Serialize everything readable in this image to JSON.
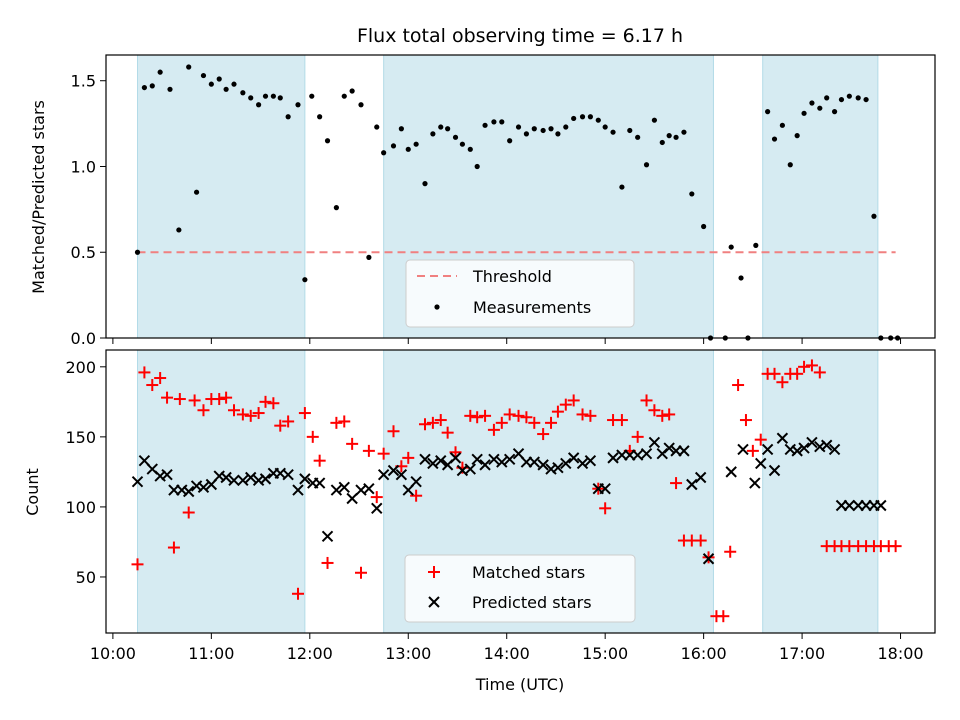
{
  "chart_data": [
    {
      "type": "scatter",
      "title": "Flux total observing time = 6.17 h",
      "xlabel": "",
      "ylabel": "Matched/Predicted stars",
      "xlim": [
        9.93,
        18.35
      ],
      "ylim": [
        0,
        1.65
      ],
      "yticks": [
        0.0,
        0.5,
        1.0,
        1.5
      ],
      "ytick_labels": [
        "0.0",
        "0.5",
        "1.0",
        "1.5"
      ],
      "xticks": [
        10,
        11,
        12,
        13,
        14,
        15,
        16,
        17,
        18
      ],
      "shaded_intervals": [
        [
          10.25,
          11.95
        ],
        [
          12.75,
          16.1
        ],
        [
          16.6,
          17.77
        ]
      ],
      "threshold": {
        "label": "Threshold",
        "value": 0.5,
        "x_range": [
          10.25,
          17.95
        ],
        "color": "#f08080"
      },
      "legend": {
        "position": "lower-center",
        "entries": [
          "Threshold",
          "Measurements"
        ]
      },
      "series": [
        {
          "name": "Measurements",
          "color": "#000000",
          "x": [
            10.25,
            10.32,
            10.4,
            10.48,
            10.58,
            10.67,
            10.77,
            10.85,
            10.92,
            11.0,
            11.08,
            11.15,
            11.23,
            11.32,
            11.4,
            11.48,
            11.55,
            11.63,
            11.7,
            11.78,
            11.88,
            11.95,
            12.02,
            12.1,
            12.18,
            12.27,
            12.35,
            12.43,
            12.52,
            12.6,
            12.68,
            12.75,
            12.85,
            12.93,
            13.0,
            13.08,
            13.17,
            13.25,
            13.33,
            13.4,
            13.48,
            13.55,
            13.63,
            13.7,
            13.78,
            13.87,
            13.95,
            14.03,
            14.12,
            14.2,
            14.28,
            14.37,
            14.45,
            14.52,
            14.6,
            14.68,
            14.77,
            14.85,
            14.93,
            15.0,
            15.08,
            15.17,
            15.25,
            15.33,
            15.42,
            15.5,
            15.58,
            15.65,
            15.72,
            15.8,
            15.88,
            16.0,
            16.07,
            16.22,
            16.28,
            16.38,
            16.45,
            16.53,
            16.65,
            16.72,
            16.8,
            16.88,
            16.95,
            17.02,
            17.1,
            17.18,
            17.25,
            17.33,
            17.4,
            17.48,
            17.57,
            17.65,
            17.73,
            17.8,
            17.9,
            17.97
          ],
          "y": [
            0.5,
            1.46,
            1.47,
            1.55,
            1.45,
            0.63,
            1.58,
            0.85,
            1.53,
            1.48,
            1.51,
            1.45,
            1.48,
            1.43,
            1.4,
            1.36,
            1.41,
            1.41,
            1.4,
            1.29,
            1.36,
            0.34,
            1.41,
            1.29,
            1.15,
            0.76,
            1.41,
            1.44,
            1.36,
            0.47,
            1.23,
            1.08,
            1.12,
            1.22,
            1.1,
            1.13,
            0.9,
            1.19,
            1.23,
            1.22,
            1.17,
            1.13,
            1.1,
            1.0,
            1.24,
            1.26,
            1.26,
            1.15,
            1.23,
            1.19,
            1.22,
            1.21,
            1.22,
            1.19,
            1.23,
            1.28,
            1.29,
            1.29,
            1.27,
            1.23,
            1.2,
            0.88,
            1.21,
            1.17,
            1.01,
            1.27,
            1.14,
            1.18,
            1.17,
            1.2,
            0.84,
            0.65,
            0.0,
            0.0,
            0.53,
            0.35,
            0.0,
            0.54,
            1.32,
            1.16,
            1.24,
            1.01,
            1.18,
            1.31,
            1.37,
            1.34,
            1.4,
            1.32,
            1.39,
            1.41,
            1.4,
            1.39,
            0.71,
            0.0,
            0.0,
            0.0
          ]
        }
      ]
    },
    {
      "type": "scatter",
      "title": "",
      "xlabel": "Time (UTC)",
      "ylabel": "Count",
      "xlim": [
        9.93,
        18.35
      ],
      "ylim": [
        10,
        212
      ],
      "yticks": [
        50,
        100,
        150,
        200
      ],
      "ytick_labels": [
        "50",
        "100",
        "150",
        "200"
      ],
      "xticks": [
        10,
        11,
        12,
        13,
        14,
        15,
        16,
        17,
        18
      ],
      "xtick_labels": [
        "10:00",
        "11:00",
        "12:00",
        "13:00",
        "14:00",
        "15:00",
        "16:00",
        "17:00",
        "18:00"
      ],
      "shaded_intervals": [
        [
          10.25,
          11.95
        ],
        [
          12.75,
          16.1
        ],
        [
          16.6,
          17.77
        ]
      ],
      "legend": {
        "position": "lower-center",
        "entries": [
          "Matched stars",
          "Predicted stars"
        ]
      },
      "series": [
        {
          "name": "Matched stars",
          "color": "#ff0000",
          "marker": "plus",
          "x": [
            10.25,
            10.32,
            10.4,
            10.48,
            10.55,
            10.62,
            10.68,
            10.77,
            10.83,
            10.92,
            11.0,
            11.08,
            11.15,
            11.23,
            11.32,
            11.4,
            11.48,
            11.55,
            11.63,
            11.7,
            11.78,
            11.88,
            11.95,
            12.03,
            12.1,
            12.18,
            12.27,
            12.35,
            12.43,
            12.52,
            12.6,
            12.68,
            12.75,
            12.85,
            12.93,
            13.0,
            13.08,
            13.17,
            13.25,
            13.33,
            13.4,
            13.48,
            13.55,
            13.63,
            13.7,
            13.78,
            13.87,
            13.95,
            14.03,
            14.12,
            14.2,
            14.28,
            14.37,
            14.45,
            14.52,
            14.6,
            14.68,
            14.77,
            14.85,
            14.93,
            15.0,
            15.08,
            15.17,
            15.25,
            15.33,
            15.42,
            15.5,
            15.58,
            15.65,
            15.72,
            15.8,
            15.88,
            15.97,
            16.05,
            16.13,
            16.2,
            16.27,
            16.35,
            16.43,
            16.5,
            16.58,
            16.65,
            16.72,
            16.8,
            16.88,
            16.95,
            17.02,
            17.1,
            17.18,
            17.25,
            17.33,
            17.4,
            17.48,
            17.57,
            17.65,
            17.73,
            17.8,
            17.88,
            17.95
          ],
          "y": [
            59,
            196,
            187,
            192,
            178,
            71,
            177,
            96,
            176,
            169,
            177,
            177,
            178,
            169,
            166,
            165,
            167,
            175,
            174,
            158,
            161,
            38,
            167,
            150,
            133,
            60,
            160,
            161,
            145,
            53,
            140,
            107,
            138,
            154,
            129,
            135,
            108,
            159,
            160,
            162,
            153,
            139,
            128,
            165,
            164,
            165,
            155,
            160,
            166,
            165,
            164,
            160,
            152,
            160,
            168,
            173,
            176,
            166,
            165,
            113,
            99,
            162,
            162,
            140,
            150,
            176,
            169,
            165,
            166,
            117,
            76,
            76,
            76,
            64,
            22,
            22,
            68,
            187,
            162,
            140,
            148,
            195,
            195,
            189,
            195,
            195,
            200,
            201,
            196,
            72,
            72,
            72,
            72,
            72,
            72,
            72,
            72,
            72,
            72
          ],
          "note_trunc": 96
        },
        {
          "name": "Predicted stars",
          "color": "#000000",
          "marker": "x",
          "x": [
            10.25,
            10.32,
            10.4,
            10.48,
            10.55,
            10.62,
            10.7,
            10.77,
            10.85,
            10.92,
            11.0,
            11.08,
            11.15,
            11.23,
            11.32,
            11.4,
            11.48,
            11.55,
            11.63,
            11.7,
            11.78,
            11.88,
            11.95,
            12.03,
            12.1,
            12.18,
            12.27,
            12.35,
            12.43,
            12.52,
            12.6,
            12.68,
            12.75,
            12.85,
            12.93,
            13.0,
            13.08,
            13.17,
            13.25,
            13.33,
            13.4,
            13.48,
            13.55,
            13.63,
            13.7,
            13.78,
            13.87,
            13.95,
            14.03,
            14.12,
            14.2,
            14.28,
            14.37,
            14.45,
            14.52,
            14.6,
            14.68,
            14.77,
            14.85,
            14.93,
            15.0,
            15.08,
            15.17,
            15.25,
            15.33,
            15.42,
            15.5,
            15.58,
            15.65,
            15.72,
            15.8,
            15.88,
            15.97,
            16.05,
            16.28,
            16.4,
            16.52,
            16.58,
            16.65,
            16.72,
            16.8,
            16.88,
            16.95,
            17.02,
            17.1,
            17.18,
            17.25,
            17.33,
            17.4,
            17.48,
            17.57,
            17.65,
            17.73,
            17.8
          ],
          "y": [
            118,
            133,
            127,
            122,
            123,
            112,
            112,
            111,
            115,
            114,
            116,
            122,
            121,
            119,
            119,
            121,
            119,
            120,
            124,
            124,
            123,
            112,
            120,
            117,
            117,
            79,
            112,
            114,
            106,
            112,
            113,
            99,
            123,
            126,
            123,
            112,
            118,
            134,
            131,
            133,
            130,
            135,
            126,
            127,
            134,
            130,
            134,
            132,
            134,
            138,
            132,
            132,
            130,
            127,
            128,
            131,
            135,
            131,
            133,
            113,
            113,
            135,
            137,
            137,
            137,
            138,
            146,
            138,
            142,
            140,
            140,
            116,
            121,
            63,
            125,
            141,
            117,
            131,
            141,
            126,
            149,
            141,
            140,
            142,
            146,
            143,
            144,
            141,
            101,
            101,
            101,
            101,
            101,
            101
          ],
          "note_trunc": 89
        }
      ]
    }
  ]
}
